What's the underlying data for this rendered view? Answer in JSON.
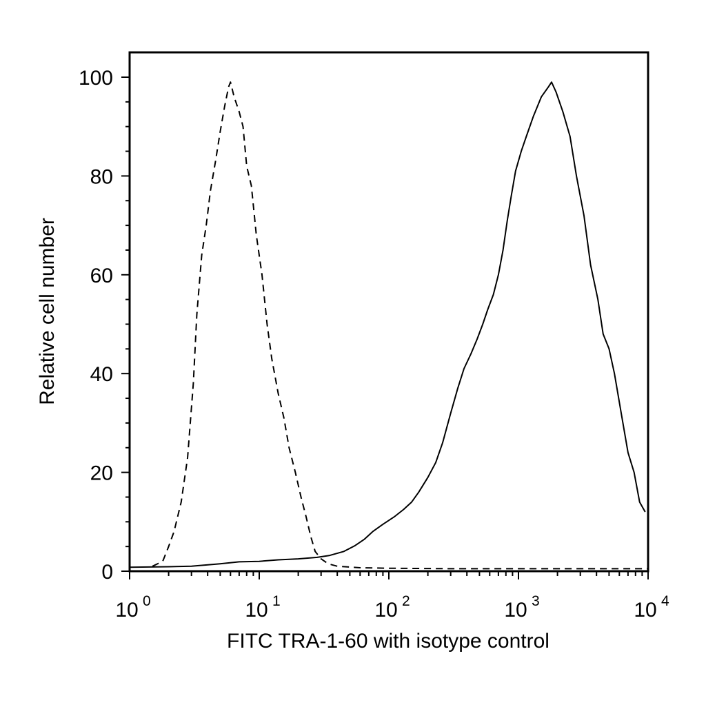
{
  "chart_data": {
    "type": "line",
    "xlabel": "FITC TRA-1-60 with isotype control",
    "ylabel": "Relative cell number",
    "x_scale": "log",
    "xlim": [
      1,
      10000
    ],
    "ylim": [
      0,
      100
    ],
    "x_ticks": [
      {
        "base": "10",
        "exp": "0",
        "value": 1
      },
      {
        "base": "10",
        "exp": "1",
        "value": 10
      },
      {
        "base": "10",
        "exp": "2",
        "value": 100
      },
      {
        "base": "10",
        "exp": "3",
        "value": 1000
      },
      {
        "base": "10",
        "exp": "4",
        "value": 10000
      }
    ],
    "y_ticks": [
      "0",
      "20",
      "40",
      "60",
      "80",
      "100"
    ],
    "grid": false,
    "colors": {
      "line": "#000000",
      "background": "#ffffff"
    },
    "series": [
      {
        "style": "dashed",
        "points": [
          [
            1.5,
            1
          ],
          [
            1.8,
            2
          ],
          [
            2.0,
            5
          ],
          [
            2.2,
            8
          ],
          [
            2.5,
            14
          ],
          [
            2.8,
            23
          ],
          [
            3.1,
            38
          ],
          [
            3.3,
            52
          ],
          [
            3.6,
            64
          ],
          [
            3.9,
            70
          ],
          [
            4.2,
            77
          ],
          [
            4.6,
            83
          ],
          [
            5.0,
            89
          ],
          [
            5.4,
            94
          ],
          [
            5.8,
            98
          ],
          [
            6.0,
            99
          ],
          [
            6.4,
            96
          ],
          [
            7.0,
            93
          ],
          [
            7.5,
            90
          ],
          [
            8.0,
            82
          ],
          [
            8.7,
            78
          ],
          [
            9.5,
            68
          ],
          [
            10.5,
            60
          ],
          [
            11.5,
            50
          ],
          [
            12.5,
            43
          ],
          [
            14.0,
            36
          ],
          [
            15.5,
            31
          ],
          [
            17.0,
            25
          ],
          [
            19.0,
            20
          ],
          [
            21.0,
            15
          ],
          [
            23.0,
            11
          ],
          [
            25.0,
            7
          ],
          [
            27.0,
            4
          ],
          [
            30.0,
            2.5
          ],
          [
            34.0,
            1.5
          ],
          [
            40.0,
            1
          ],
          [
            60.0,
            0.7
          ],
          [
            100,
            0.6
          ],
          [
            300,
            0.5
          ],
          [
            1000,
            0.5
          ],
          [
            3000,
            0.5
          ],
          [
            10000,
            0.5
          ]
        ]
      },
      {
        "style": "solid",
        "points": [
          [
            1.0,
            0.8
          ],
          [
            2.0,
            0.9
          ],
          [
            3.0,
            1.0
          ],
          [
            5.0,
            1.5
          ],
          [
            7.0,
            1.9
          ],
          [
            10.0,
            2.0
          ],
          [
            14.0,
            2.3
          ],
          [
            20.0,
            2.5
          ],
          [
            28.0,
            2.8
          ],
          [
            35.0,
            3.2
          ],
          [
            45.0,
            4.0
          ],
          [
            55.0,
            5.2
          ],
          [
            65.0,
            6.5
          ],
          [
            75.0,
            8.0
          ],
          [
            90.0,
            9.5
          ],
          [
            110,
            11.0
          ],
          [
            130,
            12.5
          ],
          [
            150,
            14.0
          ],
          [
            170,
            16.0
          ],
          [
            200,
            19.0
          ],
          [
            230,
            22.0
          ],
          [
            260,
            26.0
          ],
          [
            300,
            32.0
          ],
          [
            340,
            37.0
          ],
          [
            380,
            41.0
          ],
          [
            430,
            44.0
          ],
          [
            480,
            47.0
          ],
          [
            530,
            50.0
          ],
          [
            580,
            53.0
          ],
          [
            640,
            56.0
          ],
          [
            700,
            60.0
          ],
          [
            760,
            65.0
          ],
          [
            820,
            71.0
          ],
          [
            880,
            76.0
          ],
          [
            950,
            81.0
          ],
          [
            1050,
            85.0
          ],
          [
            1150,
            88.0
          ],
          [
            1300,
            92.0
          ],
          [
            1500,
            96.0
          ],
          [
            1700,
            98.0
          ],
          [
            1800,
            99.0
          ],
          [
            1950,
            97.0
          ],
          [
            2200,
            93.0
          ],
          [
            2500,
            88.0
          ],
          [
            2800,
            80.0
          ],
          [
            3200,
            72.0
          ],
          [
            3600,
            62.0
          ],
          [
            4100,
            55.0
          ],
          [
            4500,
            48.0
          ],
          [
            5000,
            45.0
          ],
          [
            5500,
            40.0
          ],
          [
            6200,
            32.0
          ],
          [
            7000,
            24.0
          ],
          [
            7800,
            20.0
          ],
          [
            8600,
            14.0
          ],
          [
            9500,
            12.0
          ]
        ]
      }
    ]
  }
}
